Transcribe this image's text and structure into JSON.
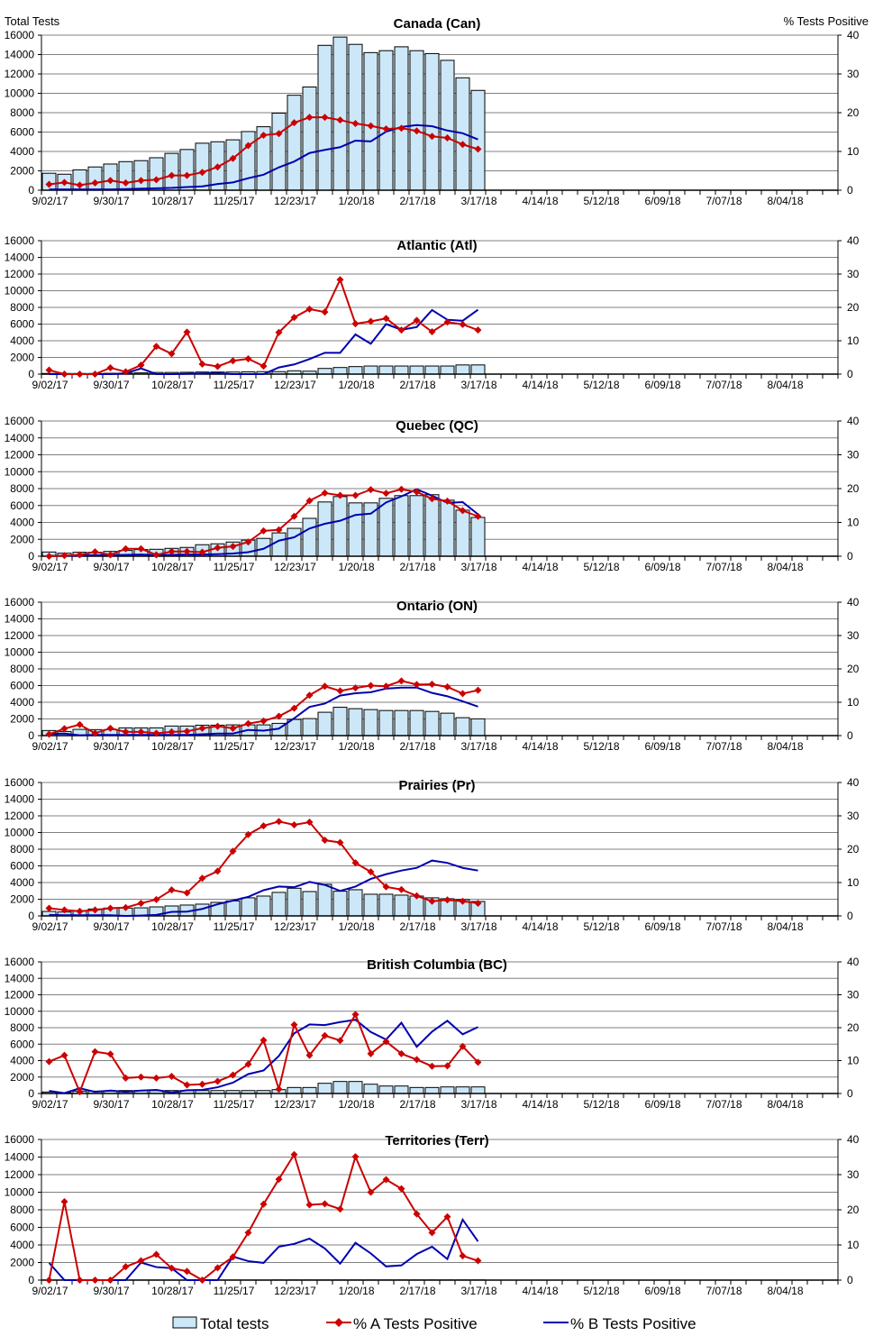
{
  "header": {
    "left_axis_title": "Total Tests",
    "right_axis_title": "%  Tests Positive"
  },
  "legend": {
    "bars": "Total tests",
    "a": "% A Tests Positive",
    "b": "% B Tests Positive"
  },
  "colors": {
    "bar_fill": "#cce8f8",
    "bar_stroke": "#000000",
    "series_a": "#cc0000",
    "series_b": "#0000b0",
    "grid": "#808080"
  },
  "chart_data": [
    {
      "type": "bar+line",
      "title": "Canada (Can)",
      "ylim": [
        0,
        16000
      ],
      "y2lim": [
        0,
        40
      ],
      "x_tick_labels": [
        "9/02/17",
        "9/30/17",
        "10/28/17",
        "11/25/17",
        "12/23/17",
        "1/20/18",
        "2/17/18",
        "3/17/18",
        "4/14/18",
        "5/12/18",
        "6/09/18",
        "7/07/18",
        "8/04/18"
      ],
      "y_tick_labels": [
        "0",
        "2000",
        "4000",
        "6000",
        "8000",
        "10000",
        "12000",
        "14000",
        "16000"
      ],
      "y2_tick_labels": [
        "0",
        "10",
        "20",
        "30",
        "40"
      ],
      "total_tests": [
        1750,
        1650,
        2100,
        2400,
        2700,
        2950,
        3050,
        3350,
        3800,
        4200,
        4850,
        5000,
        5200,
        6050,
        6550,
        7950,
        9800,
        10650,
        14950,
        15800,
        15050,
        14200,
        14400,
        14800,
        14400,
        14100,
        13400,
        11600,
        10300
      ],
      "pct_a": [
        1.5,
        2.0,
        1.3,
        1.9,
        2.5,
        1.9,
        2.5,
        2.7,
        3.8,
        3.8,
        4.6,
        6.0,
        8.2,
        11.5,
        14.2,
        14.6,
        17.4,
        18.8,
        18.8,
        18.1,
        17.2,
        16.6,
        15.8,
        16.0,
        15.3,
        13.9,
        13.5,
        11.8,
        10.6
      ],
      "pct_b": [
        0.2,
        0.2,
        0.2,
        0.2,
        0.2,
        0.3,
        0.4,
        0.5,
        0.6,
        0.8,
        1.0,
        1.6,
        2.0,
        3.1,
        4.0,
        5.9,
        7.4,
        9.6,
        10.4,
        11.1,
        12.8,
        12.6,
        15.1,
        16.3,
        16.8,
        16.5,
        15.4,
        14.7,
        13.1
      ]
    },
    {
      "type": "bar+line",
      "title": "Atlantic (Atl)",
      "ylim": [
        0,
        16000
      ],
      "y2lim": [
        0,
        40
      ],
      "x_tick_labels": [
        "9/02/17",
        "9/30/17",
        "10/28/17",
        "11/25/17",
        "12/23/17",
        "1/20/18",
        "2/17/18",
        "3/17/18",
        "4/14/18",
        "5/12/18",
        "6/09/18",
        "7/07/18",
        "8/04/18"
      ],
      "y_tick_labels": [
        "0",
        "2000",
        "4000",
        "6000",
        "8000",
        "10000",
        "12000",
        "14000",
        "16000"
      ],
      "y2_tick_labels": [
        "0",
        "10",
        "20",
        "30",
        "40"
      ],
      "total_tests": [
        80,
        80,
        80,
        80,
        100,
        120,
        150,
        200,
        200,
        220,
        250,
        250,
        250,
        270,
        300,
        300,
        400,
        350,
        680,
        790,
        900,
        970,
        970,
        970,
        970,
        970,
        970,
        1100,
        1100
      ],
      "pct_a": [
        1.2,
        0,
        0,
        0,
        1.9,
        0.7,
        2.7,
        8.3,
        6.1,
        12.6,
        3.0,
        2.3,
        4.0,
        4.6,
        2.4,
        12.5,
        17.0,
        19.5,
        18.6,
        28.3,
        15.1,
        15.8,
        16.7,
        13.2,
        16.1,
        12.7,
        15.6,
        14.9,
        13.2
      ],
      "pct_b": [
        0,
        0,
        0,
        0,
        0,
        0.2,
        1.7,
        0,
        0,
        0.1,
        0.2,
        0.3,
        0,
        0,
        0,
        2.0,
        2.9,
        4.5,
        6.4,
        6.4,
        11.9,
        9.1,
        15.0,
        13.3,
        14.1,
        19.2,
        16.3,
        16.0,
        19.3
      ]
    },
    {
      "type": "bar+line",
      "title": "Quebec (QC)",
      "ylim": [
        0,
        16000
      ],
      "y2lim": [
        0,
        40
      ],
      "x_tick_labels": [
        "9/02/17",
        "9/30/17",
        "10/28/17",
        "11/25/17",
        "12/23/17",
        "1/20/18",
        "2/17/18",
        "3/17/18",
        "4/14/18",
        "5/12/18",
        "6/09/18",
        "7/07/18",
        "8/04/18"
      ],
      "y_tick_labels": [
        "0",
        "2000",
        "4000",
        "6000",
        "8000",
        "10000",
        "12000",
        "14000",
        "16000"
      ],
      "y2_tick_labels": [
        "0",
        "10",
        "20",
        "30",
        "40"
      ],
      "total_tests": [
        500,
        360,
        470,
        470,
        570,
        680,
        790,
        820,
        930,
        1040,
        1360,
        1470,
        1680,
        1900,
        2110,
        2760,
        3300,
        4480,
        6420,
        7060,
        6310,
        6310,
        6850,
        7170,
        7170,
        7280,
        6630,
        5450,
        4590
      ],
      "pct_a": [
        0,
        0.2,
        0.4,
        1.3,
        0.4,
        2.2,
        2.2,
        0.4,
        1.4,
        1.4,
        1.2,
        2.5,
        2.9,
        4.2,
        7.5,
        7.8,
        11.8,
        16.4,
        18.7,
        18.0,
        18.0,
        19.7,
        18.6,
        19.8,
        19.0,
        17.0,
        16.3,
        13.5,
        11.8
      ],
      "pct_b": [
        0.1,
        0.1,
        0.2,
        0.3,
        0.3,
        0.4,
        0.5,
        0.3,
        0.4,
        0.5,
        0.5,
        0.6,
        0.8,
        1.2,
        2.2,
        4.6,
        5.6,
        8.2,
        9.6,
        10.5,
        12.2,
        12.6,
        15.9,
        17.7,
        19.8,
        17.9,
        15.8,
        16.0,
        12.4
      ]
    },
    {
      "type": "bar+line",
      "title": "Ontario (ON)",
      "ylim": [
        0,
        16000
      ],
      "y2lim": [
        0,
        40
      ],
      "x_tick_labels": [
        "9/02/17",
        "9/30/17",
        "10/28/17",
        "11/25/17",
        "12/23/17",
        "1/20/18",
        "2/17/18",
        "3/17/18",
        "4/14/18",
        "5/12/18",
        "6/09/18",
        "7/07/18",
        "8/04/18"
      ],
      "y_tick_labels": [
        "0",
        "2000",
        "4000",
        "6000",
        "8000",
        "10000",
        "12000",
        "14000",
        "16000"
      ],
      "y2_tick_labels": [
        "0",
        "10",
        "20",
        "30",
        "40"
      ],
      "total_tests": [
        610,
        500,
        750,
        720,
        720,
        930,
        930,
        930,
        1150,
        1150,
        1250,
        1250,
        1290,
        1290,
        1290,
        1470,
        1940,
        2040,
        2800,
        3400,
        3230,
        3120,
        3010,
        3010,
        3010,
        2900,
        2690,
        2150,
        2010
      ],
      "pct_a": [
        0.4,
        2.1,
        3.3,
        0.7,
        2.2,
        1.1,
        1.1,
        0.7,
        1.1,
        1.3,
        2.2,
        2.8,
        2.2,
        3.6,
        4.4,
        5.8,
        8.2,
        12.1,
        14.8,
        13.4,
        14.3,
        15.0,
        14.8,
        16.4,
        15.3,
        15.4,
        14.6,
        12.6,
        13.6
      ],
      "pct_b": [
        0.5,
        0.6,
        0.1,
        0.2,
        0.2,
        0.2,
        0.2,
        0.2,
        0.2,
        0.2,
        0.4,
        0.6,
        0.6,
        1.7,
        1.5,
        2.1,
        5.2,
        8.6,
        9.6,
        12.0,
        12.7,
        13.0,
        14.1,
        14.4,
        14.4,
        12.8,
        11.8,
        10.3,
        8.7
      ]
    },
    {
      "type": "bar+line",
      "title": "Prairies (Pr)",
      "ylim": [
        0,
        16000
      ],
      "y2lim": [
        0,
        40
      ],
      "x_tick_labels": [
        "9/02/17",
        "9/30/17",
        "10/28/17",
        "11/25/17",
        "12/23/17",
        "1/20/18",
        "2/17/18",
        "3/17/18",
        "4/14/18",
        "5/12/18",
        "6/09/18",
        "7/07/18",
        "8/04/18"
      ],
      "y_tick_labels": [
        "0",
        "2000",
        "4000",
        "6000",
        "8000",
        "10000",
        "12000",
        "14000",
        "16000"
      ],
      "y2_tick_labels": [
        "0",
        "10",
        "20",
        "30",
        "40"
      ],
      "total_tests": [
        540,
        470,
        650,
        830,
        940,
        940,
        970,
        1080,
        1190,
        1300,
        1410,
        1620,
        1800,
        2170,
        2380,
        2820,
        3320,
        2920,
        3790,
        2960,
        3140,
        2600,
        2600,
        2490,
        2380,
        2170,
        2060,
        1950,
        1730
      ],
      "pct_a": [
        2.3,
        1.8,
        1.4,
        1.8,
        2.3,
        2.5,
        3.8,
        4.9,
        7.8,
        6.9,
        11.3,
        13.4,
        19.4,
        24.4,
        27.0,
        28.3,
        27.3,
        28.1,
        22.7,
        22.0,
        15.9,
        13.2,
        8.7,
        7.9,
        6.0,
        4.4,
        4.8,
        4.4,
        3.8
      ],
      "pct_b": [
        0.3,
        0.2,
        0.2,
        0.2,
        0.2,
        0,
        0.1,
        0.3,
        1.2,
        1.3,
        2.1,
        3.5,
        4.6,
        5.7,
        7.7,
        8.8,
        8.6,
        10.2,
        9.3,
        7.5,
        8.8,
        11.1,
        12.5,
        13.6,
        14.4,
        16.6,
        15.9,
        14.4,
        13.6
      ]
    },
    {
      "type": "bar+line",
      "title": "British Columbia (BC)",
      "ylim": [
        0,
        16000
      ],
      "y2lim": [
        0,
        40
      ],
      "x_tick_labels": [
        "9/02/17",
        "9/30/17",
        "10/28/17",
        "11/25/17",
        "12/23/17",
        "1/20/18",
        "2/17/18",
        "3/17/18",
        "4/14/18",
        "5/12/18",
        "6/09/18",
        "7/07/18",
        "8/04/18"
      ],
      "y_tick_labels": [
        "0",
        "2000",
        "4000",
        "6000",
        "8000",
        "10000",
        "12000",
        "14000",
        "16000"
      ],
      "y2_tick_labels": [
        "0",
        "10",
        "20",
        "30",
        "40"
      ],
      "total_tests": [
        180,
        110,
        290,
        290,
        290,
        360,
        360,
        360,
        360,
        360,
        360,
        360,
        360,
        360,
        360,
        470,
        730,
        730,
        1240,
        1460,
        1460,
        1130,
        910,
        910,
        730,
        730,
        800,
        800,
        800
      ],
      "pct_a": [
        9.7,
        11.6,
        0.5,
        12.7,
        12.0,
        4.7,
        5.0,
        4.7,
        5.2,
        2.6,
        2.8,
        3.7,
        5.6,
        8.9,
        16.2,
        1.3,
        20.9,
        11.6,
        17.6,
        16.1,
        24.0,
        12.1,
        15.8,
        12.1,
        10.3,
        8.3,
        8.4,
        14.3,
        9.5
      ],
      "pct_b": [
        0.8,
        0.1,
        1.6,
        0.5,
        0.9,
        0.5,
        0.9,
        1.1,
        0.3,
        1.0,
        1.1,
        1.9,
        3.3,
        5.9,
        7.0,
        11.4,
        18.3,
        21.0,
        20.8,
        21.7,
        22.4,
        18.7,
        16.4,
        21.5,
        14.2,
        18.8,
        22.1,
        18.0,
        20.2
      ]
    },
    {
      "type": "bar+line",
      "title": "Territories (Terr)",
      "ylim": [
        0,
        16000
      ],
      "y2lim": [
        0,
        40
      ],
      "x_tick_labels": [
        "9/02/17",
        "9/30/17",
        "10/28/17",
        "11/25/17",
        "12/23/17",
        "1/20/18",
        "2/17/18",
        "3/17/18",
        "4/14/18",
        "5/12/18",
        "6/09/18",
        "7/07/18",
        "8/04/18"
      ],
      "y_tick_labels": [
        "0",
        "2000",
        "4000",
        "6000",
        "8000",
        "10000",
        "12000",
        "14000",
        "16000"
      ],
      "y2_tick_labels": [
        "0",
        "10",
        "20",
        "30",
        "40"
      ],
      "total_tests": [
        10,
        10,
        10,
        10,
        10,
        10,
        10,
        10,
        10,
        10,
        10,
        10,
        10,
        10,
        10,
        20,
        20,
        20,
        20,
        20,
        20,
        20,
        20,
        20,
        20,
        20,
        20,
        20,
        20
      ],
      "pct_a": [
        0,
        22.3,
        0,
        0,
        0,
        3.8,
        5.5,
        7.3,
        3.4,
        2.5,
        0,
        3.5,
        6.6,
        13.5,
        21.6,
        28.7,
        35.7,
        21.4,
        21.7,
        20.2,
        35.1,
        25.0,
        28.6,
        26.0,
        18.8,
        13.5,
        18.0,
        6.9,
        5.5
      ],
      "pct_b": [
        4.9,
        0,
        0,
        0,
        0,
        0,
        5.0,
        3.7,
        3.4,
        0,
        0,
        0,
        6.7,
        5.4,
        4.9,
        9.5,
        10.3,
        11.8,
        9.0,
        4.7,
        10.6,
        7.6,
        3.9,
        4.2,
        7.4,
        9.5,
        6.0,
        17.2,
        11.0
      ]
    }
  ]
}
